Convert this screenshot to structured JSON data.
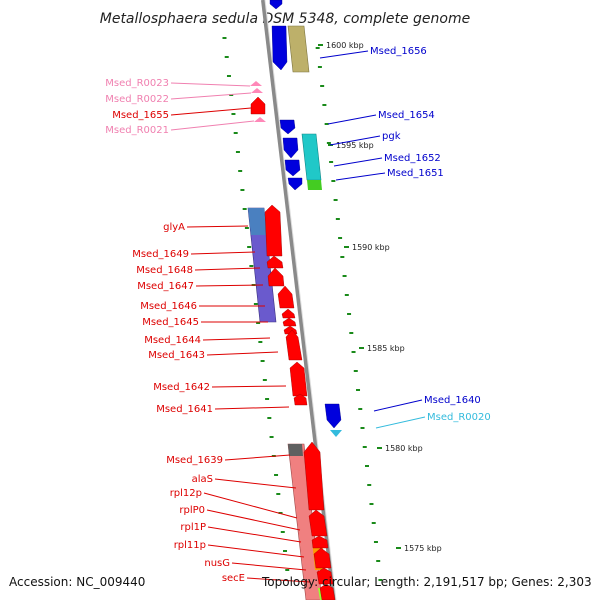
{
  "title": "Metallosphaera sedula DSM 5348, complete genome",
  "footer": {
    "accession": "Accession: NC_009440",
    "stats": "Topology: circular; Length: 2,191,517 bp; Genes: 2,303"
  },
  "ruler": [
    "1600 kbp",
    "1595 kbp",
    "1590 kbp",
    "1585 kbp",
    "1580 kbp",
    "1575 kbp"
  ],
  "colors": {
    "forward_gene": "#ff0000",
    "reverse_gene": "#0000dd",
    "forward_rna": "#ff88b8",
    "reverse_rna": "#33bbdd",
    "backbone": "#888888"
  },
  "labels_left": [
    {
      "text": "Msed_R0023",
      "color": "#f080b0"
    },
    {
      "text": "Msed_R0022",
      "color": "#f080b0"
    },
    {
      "text": "Msed_1655",
      "color": "#dd0000"
    },
    {
      "text": "Msed_R0021",
      "color": "#f080b0"
    },
    {
      "text": "glyA",
      "color": "#dd0000"
    },
    {
      "text": "Msed_1649",
      "color": "#dd0000"
    },
    {
      "text": "Msed_1648",
      "color": "#dd0000"
    },
    {
      "text": "Msed_1647",
      "color": "#dd0000"
    },
    {
      "text": "Msed_1646",
      "color": "#dd0000"
    },
    {
      "text": "Msed_1645",
      "color": "#dd0000"
    },
    {
      "text": "Msed_1644",
      "color": "#dd0000"
    },
    {
      "text": "Msed_1643",
      "color": "#dd0000"
    },
    {
      "text": "Msed_1642",
      "color": "#dd0000"
    },
    {
      "text": "Msed_1641",
      "color": "#dd0000"
    },
    {
      "text": "Msed_1639",
      "color": "#dd0000"
    },
    {
      "text": "alaS",
      "color": "#dd0000"
    },
    {
      "text": "rpl12p",
      "color": "#dd0000"
    },
    {
      "text": "rplP0",
      "color": "#dd0000"
    },
    {
      "text": "rpl1P",
      "color": "#dd0000"
    },
    {
      "text": "rpl11p",
      "color": "#dd0000"
    },
    {
      "text": "nusG",
      "color": "#dd0000"
    },
    {
      "text": "secE",
      "color": "#dd0000"
    }
  ],
  "labels_right": [
    {
      "text": "Msed_1656",
      "color": "#0000cc"
    },
    {
      "text": "Msed_1654",
      "color": "#0000cc"
    },
    {
      "text": "pgk",
      "color": "#0000cc"
    },
    {
      "text": "Msed_1652",
      "color": "#0000cc"
    },
    {
      "text": "Msed_1651",
      "color": "#0000cc"
    },
    {
      "text": "Msed_1640",
      "color": "#0000cc"
    },
    {
      "text": "Msed_R0020",
      "color": "#33bbdd"
    }
  ]
}
